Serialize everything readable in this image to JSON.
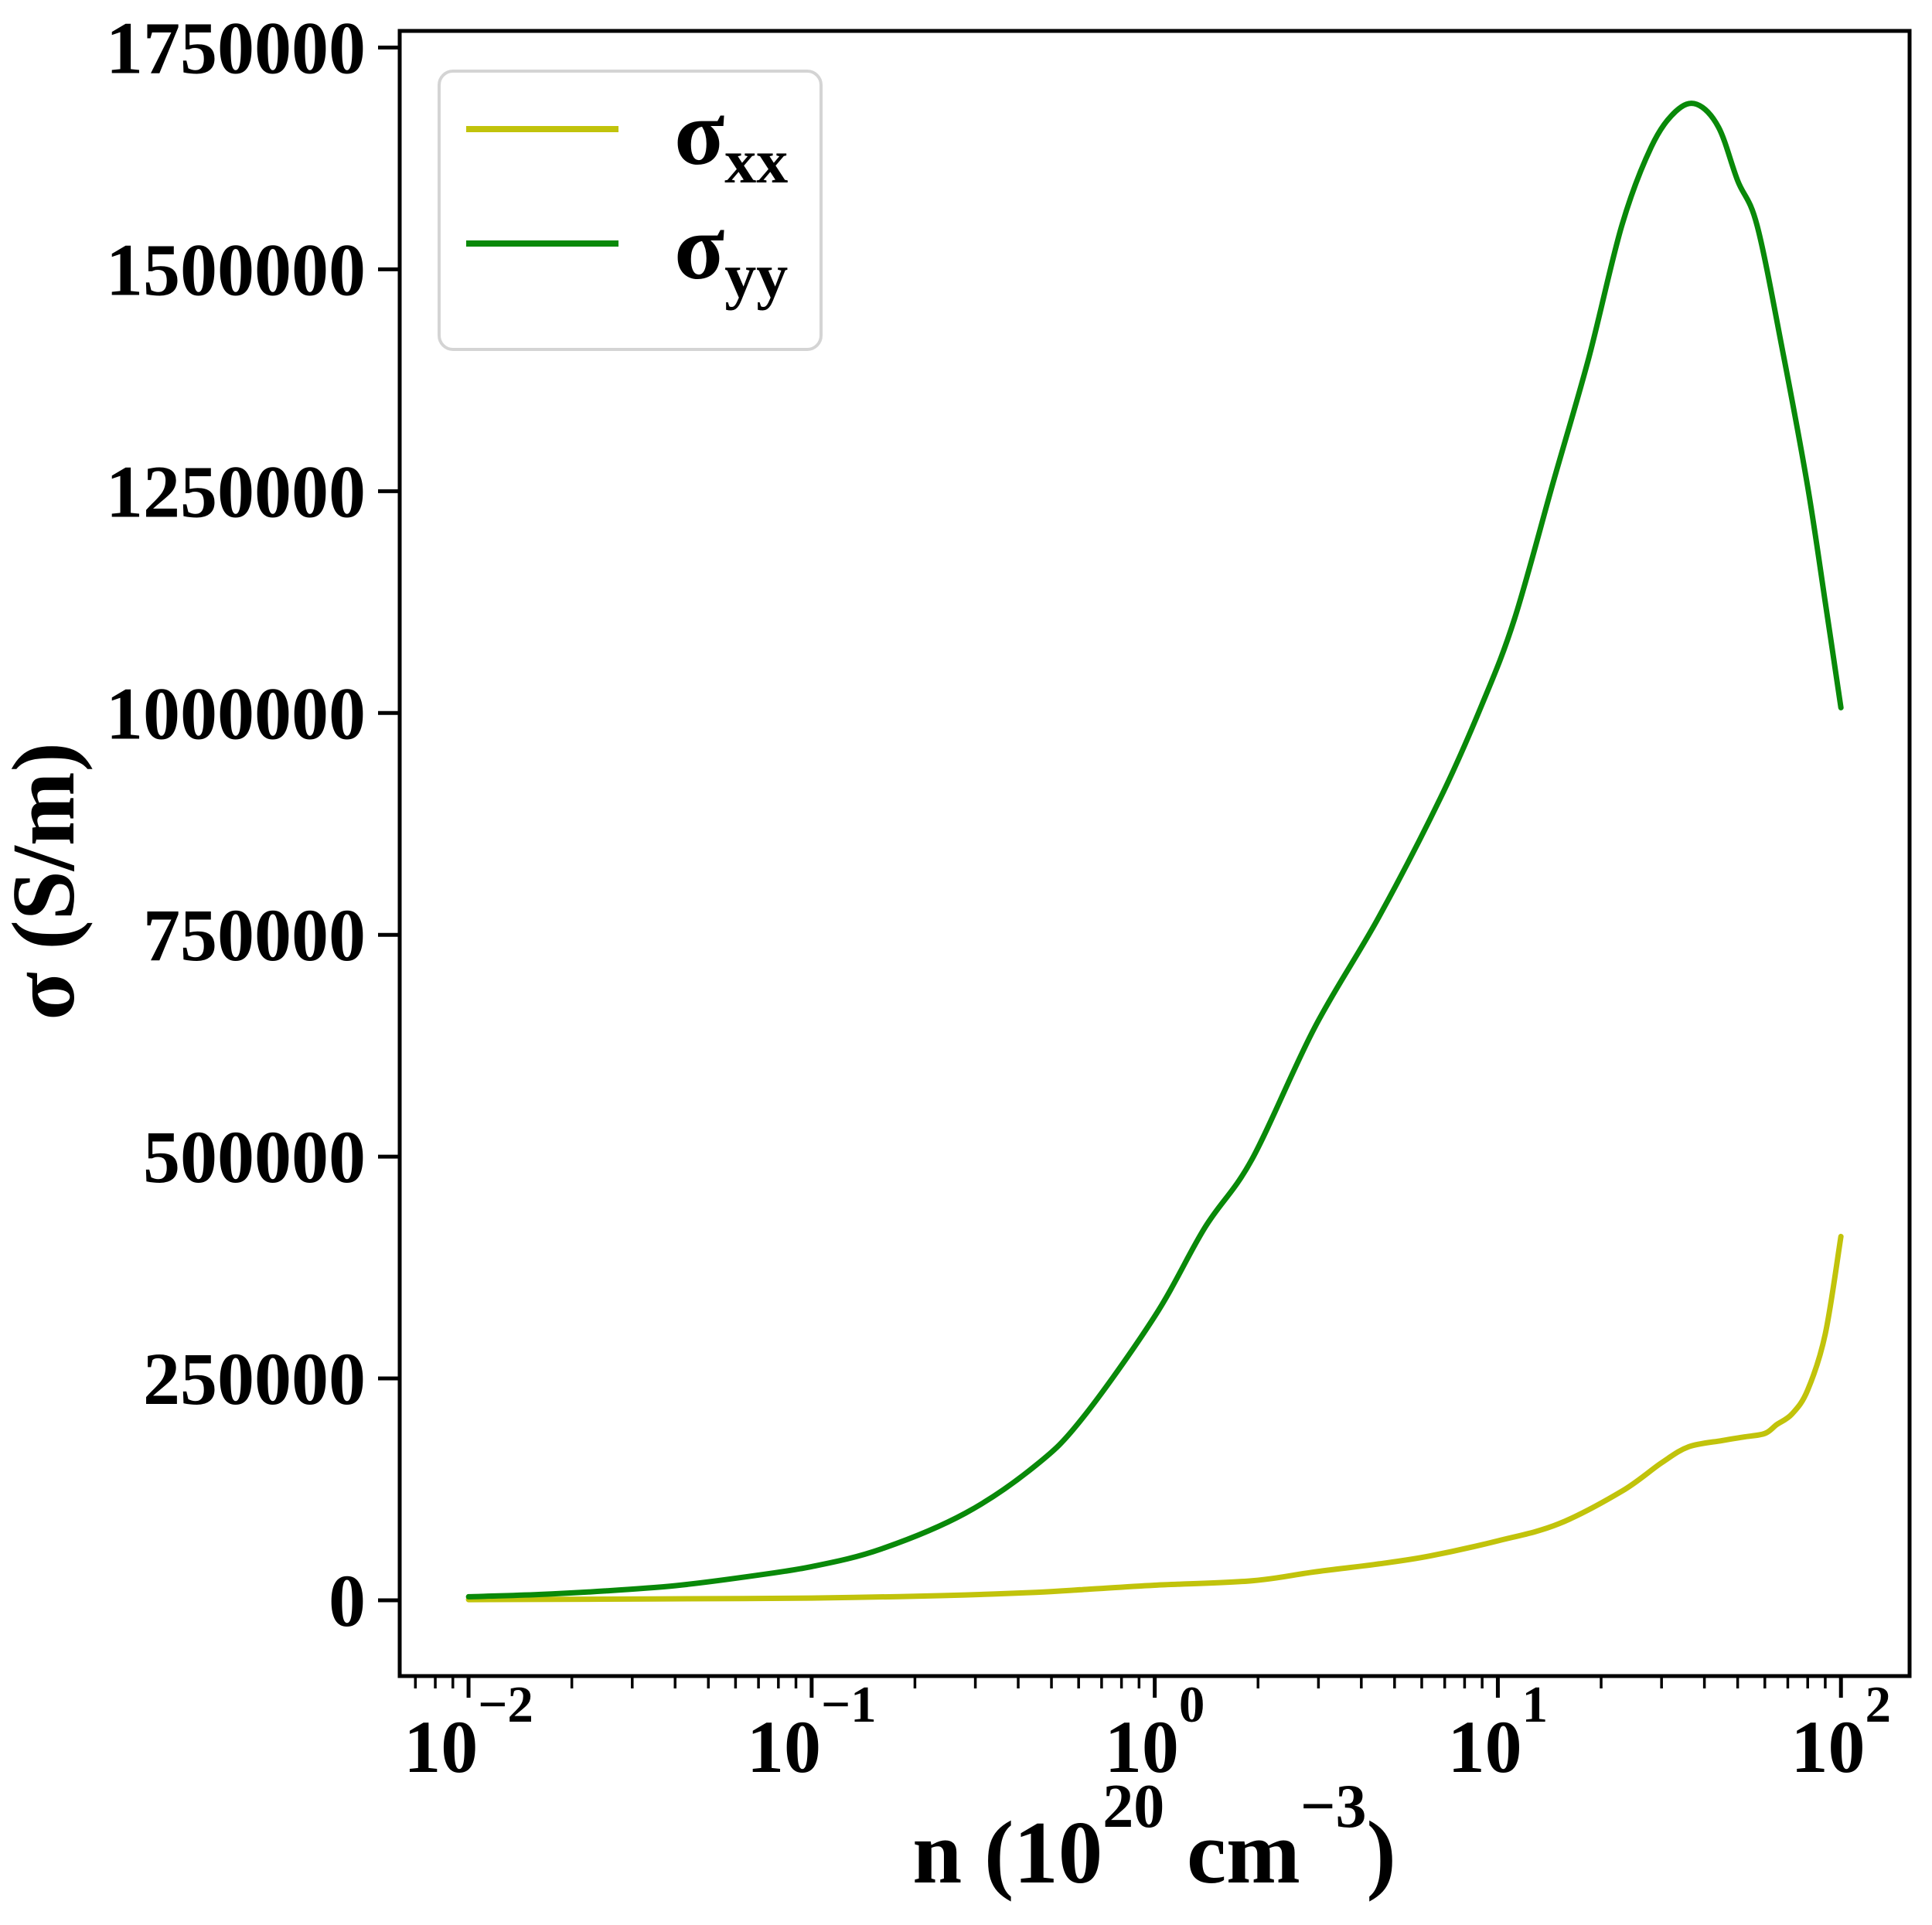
{
  "figure": {
    "background": "#ffffff"
  },
  "chart_data": {
    "type": "line",
    "title": "",
    "xscale": "log",
    "grid": false,
    "xlabel_plain": "n (10^20 cm^-3)",
    "xlabel_segments": [
      {
        "t": "n (10",
        "sup": false
      },
      {
        "t": "20",
        "sup": true
      },
      {
        "t": " cm",
        "sup": false
      },
      {
        "t": "−3",
        "sup": true
      },
      {
        "t": ")",
        "sup": false
      }
    ],
    "ylabel_plain": "σ (S/m)",
    "xlim": [
      0.0063,
      158.5
    ],
    "ylim": [
      -85390,
      1768700
    ],
    "x_major_ticks": [
      {
        "value": 0.01,
        "base": "10",
        "exp": "−2"
      },
      {
        "value": 0.1,
        "base": "10",
        "exp": "−1"
      },
      {
        "value": 1,
        "base": "10",
        "exp": "0"
      },
      {
        "value": 10,
        "base": "10",
        "exp": "1"
      },
      {
        "value": 100,
        "base": "10",
        "exp": "2"
      }
    ],
    "x_minor_tick_values": [
      0.007,
      0.008,
      0.009,
      0.02,
      0.03,
      0.04,
      0.05,
      0.06,
      0.07,
      0.08,
      0.09,
      0.2,
      0.3,
      0.4,
      0.5,
      0.6,
      0.7,
      0.8,
      0.9,
      2,
      3,
      4,
      5,
      6,
      7,
      8,
      9,
      20,
      30,
      40,
      50,
      60,
      70,
      80,
      90
    ],
    "y_ticks": [
      {
        "value": 0,
        "label": "0"
      },
      {
        "value": 250000,
        "label": "250000"
      },
      {
        "value": 500000,
        "label": "500000"
      },
      {
        "value": 750000,
        "label": "750000"
      },
      {
        "value": 1000000,
        "label": "1000000"
      },
      {
        "value": 1250000,
        "label": "1250000"
      },
      {
        "value": 1500000,
        "label": "1500000"
      },
      {
        "value": 1750000,
        "label": "1750000"
      }
    ],
    "legend": {
      "position": "upper left",
      "entries": [
        {
          "name": "sigma-xx",
          "base": "σ",
          "sub": "xx",
          "color": "#c1c30b"
        },
        {
          "name": "sigma-yy",
          "base": "σ",
          "sub": "yy",
          "color": "#098909"
        }
      ]
    },
    "series": [
      {
        "name": "sigma_xx",
        "label": "σ_xx",
        "color": "#c1c30b",
        "points": [
          [
            0.01,
            800
          ],
          [
            0.025,
            1300
          ],
          [
            0.063,
            2000
          ],
          [
            0.1,
            2500
          ],
          [
            0.18,
            4200
          ],
          [
            0.28,
            6000
          ],
          [
            0.45,
            9000
          ],
          [
            0.615,
            12000
          ],
          [
            1.0,
            17000
          ],
          [
            1.92,
            22000
          ],
          [
            2.92,
            32000
          ],
          [
            4.5,
            41000
          ],
          [
            6.35,
            50000
          ],
          [
            10,
            67000
          ],
          [
            15,
            86000
          ],
          [
            23,
            123000
          ],
          [
            30,
            155000
          ],
          [
            36,
            173000
          ],
          [
            45,
            180000
          ],
          [
            52,
            184000
          ],
          [
            60,
            188000
          ],
          [
            65,
            198000
          ],
          [
            72,
            210000
          ],
          [
            80,
            237000
          ],
          [
            90,
            300000
          ],
          [
            100,
            410000
          ]
        ]
      },
      {
        "name": "sigma_yy",
        "label": "σ_yy",
        "color": "#098909",
        "points": [
          [
            0.01,
            4000
          ],
          [
            0.016,
            6500
          ],
          [
            0.025,
            10500
          ],
          [
            0.04,
            16500
          ],
          [
            0.063,
            26000
          ],
          [
            0.1,
            38000
          ],
          [
            0.16,
            58000
          ],
          [
            0.28,
            98000
          ],
          [
            0.45,
            152000
          ],
          [
            0.615,
            205000
          ],
          [
            1.0,
            320000
          ],
          [
            1.4,
            420000
          ],
          [
            1.92,
            497000
          ],
          [
            2.92,
            645000
          ],
          [
            4.5,
            770000
          ],
          [
            6.8,
            904000
          ],
          [
            9,
            1010000
          ],
          [
            11.2,
            1107000
          ],
          [
            14.5,
            1260000
          ],
          [
            18.4,
            1400000
          ],
          [
            23,
            1550000
          ],
          [
            28,
            1638000
          ],
          [
            33,
            1678000
          ],
          [
            38,
            1686000
          ],
          [
            44,
            1660000
          ],
          [
            50,
            1600000
          ],
          [
            57,
            1549000
          ],
          [
            68,
            1403000
          ],
          [
            80,
            1255000
          ],
          [
            90,
            1125000
          ],
          [
            100,
            1006000
          ]
        ]
      }
    ]
  }
}
